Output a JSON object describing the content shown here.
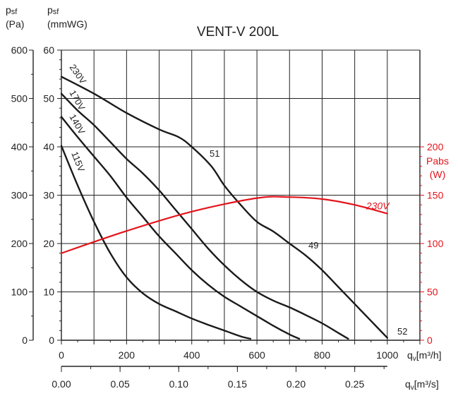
{
  "chart_data": {
    "type": "line",
    "title": "VENT-V 200L",
    "left_axis_pa": {
      "label_main": "p",
      "label_sub": "sf",
      "unit": "(Pa)",
      "ticks": [
        "0",
        "100",
        "200",
        "300",
        "400",
        "500",
        "600"
      ],
      "range": [
        0,
        600
      ]
    },
    "left_axis_mmwg": {
      "label_main": "p",
      "label_sub": "sf",
      "unit": "(mmWG)",
      "ticks": [
        "0",
        "10",
        "20",
        "30",
        "40",
        "50",
        "60"
      ],
      "range": [
        0,
        60
      ]
    },
    "right_axis_power": {
      "label_main": "Pabs",
      "unit": "(W)",
      "ticks": [
        "0",
        "50",
        "100",
        "150",
        "200"
      ],
      "range": [
        0,
        200
      ],
      "color": "#e3141b"
    },
    "x_axis_m3h": {
      "label_main": "q",
      "label_sub": "v",
      "unit": "[m³/h]",
      "ticks": [
        "0",
        "200",
        "400",
        "600",
        "800",
        "1000"
      ],
      "range": [
        0,
        1000
      ]
    },
    "x_axis_m3s": {
      "label_main": "q",
      "label_sub": "v",
      "unit": "[m³/s]",
      "ticks": [
        "0.00",
        "0.05",
        "0.10",
        "0.15",
        "0.20",
        "0.25"
      ],
      "range": [
        0,
        0.275
      ]
    },
    "grid": true,
    "series": [
      {
        "name": "230V",
        "axis": "pressure",
        "x": [
          0,
          100,
          200,
          300,
          360,
          400,
          460,
          500,
          550,
          600,
          650,
          700,
          750,
          800,
          850,
          900,
          950,
          1000
        ],
        "y": [
          545,
          510,
          470,
          436,
          420,
          400,
          360,
          320,
          280,
          245,
          225,
          200,
          175,
          145,
          110,
          75,
          40,
          5
        ]
      },
      {
        "name": "170V",
        "axis": "pressure",
        "x": [
          0,
          50,
          100,
          150,
          200,
          250,
          300,
          350,
          400,
          450,
          500,
          550,
          600,
          650,
          700,
          750,
          800,
          850,
          880
        ],
        "y": [
          510,
          475,
          445,
          410,
          375,
          345,
          310,
          270,
          230,
          190,
          155,
          125,
          100,
          82,
          68,
          52,
          35,
          15,
          3
        ]
      },
      {
        "name": "140V",
        "axis": "pressure",
        "x": [
          0,
          50,
          100,
          150,
          200,
          250,
          300,
          350,
          400,
          450,
          500,
          550,
          600,
          650,
          700,
          730
        ],
        "y": [
          462,
          420,
          380,
          340,
          295,
          255,
          215,
          180,
          145,
          115,
          90,
          70,
          50,
          30,
          12,
          3
        ]
      },
      {
        "name": "115V",
        "axis": "pressure",
        "x": [
          0,
          50,
          100,
          150,
          200,
          250,
          300,
          350,
          400,
          450,
          500,
          550,
          580
        ],
        "y": [
          402,
          320,
          245,
          180,
          130,
          97,
          75,
          60,
          45,
          32,
          20,
          8,
          3
        ]
      },
      {
        "name": "230V",
        "axis": "power",
        "color": "#e3141b",
        "x": [
          0,
          200,
          400,
          600,
          700,
          800,
          900,
          1000
        ],
        "y": [
          90,
          113,
          133,
          147,
          148,
          146,
          140,
          131
        ]
      }
    ],
    "point_labels": [
      "51",
      "49",
      "52"
    ]
  }
}
